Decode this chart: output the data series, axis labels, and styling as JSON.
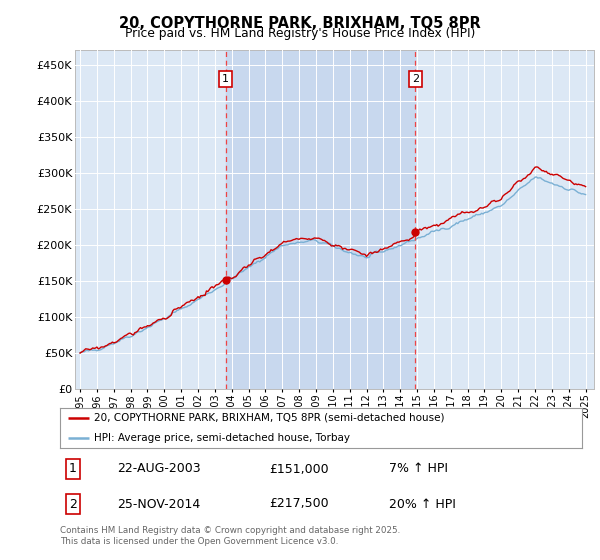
{
  "title": "20, COPYTHORNE PARK, BRIXHAM, TQ5 8PR",
  "subtitle": "Price paid vs. HM Land Registry's House Price Index (HPI)",
  "ytick_values": [
    0,
    50000,
    100000,
    150000,
    200000,
    250000,
    300000,
    350000,
    400000,
    450000
  ],
  "ylim": [
    0,
    470000
  ],
  "xlim_start": 1994.7,
  "xlim_end": 2025.5,
  "plot_bg_color": "#dce8f5",
  "shade_color": "#c8d8ee",
  "line1_color": "#cc0000",
  "line2_color": "#7ab0d4",
  "purchase1_x": 2003.64,
  "purchase1_y": 151000,
  "purchase2_x": 2014.9,
  "purchase2_y": 217500,
  "vline_color": "#ee4444",
  "legend_line1": "20, COPYTHORNE PARK, BRIXHAM, TQ5 8PR (semi-detached house)",
  "legend_line2": "HPI: Average price, semi-detached house, Torbay",
  "note1_label": "1",
  "note1_date": "22-AUG-2003",
  "note1_price": "£151,000",
  "note1_hpi": "7% ↑ HPI",
  "note2_label": "2",
  "note2_date": "25-NOV-2014",
  "note2_price": "£217,500",
  "note2_hpi": "20% ↑ HPI",
  "footer": "Contains HM Land Registry data © Crown copyright and database right 2025.\nThis data is licensed under the Open Government Licence v3.0.",
  "xtick_years": [
    1995,
    1996,
    1997,
    1998,
    1999,
    2000,
    2001,
    2002,
    2003,
    2004,
    2005,
    2006,
    2007,
    2008,
    2009,
    2010,
    2011,
    2012,
    2013,
    2014,
    2015,
    2016,
    2017,
    2018,
    2019,
    2020,
    2021,
    2022,
    2023,
    2024,
    2025
  ]
}
